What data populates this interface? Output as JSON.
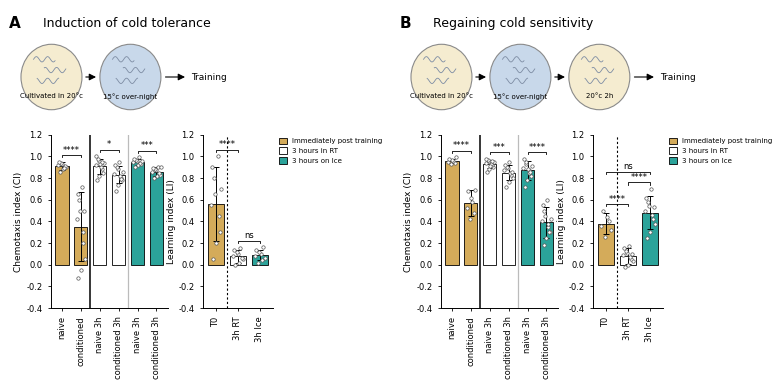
{
  "panels": [
    {
      "label": "A",
      "title": "Induction of cold tolerance",
      "steps": [
        {
          "label": "Cultivated in 20°c",
          "color": "#f5ecd0"
        },
        {
          "label": "15°c over-night",
          "color": "#c8d8ea"
        }
      ],
      "end": "Training"
    },
    {
      "label": "B",
      "title": "Regaining cold sensitivity",
      "steps": [
        {
          "label": "Cultivated in 20°c",
          "color": "#f5ecd0"
        },
        {
          "label": "15°c over-night",
          "color": "#c8d8ea"
        },
        {
          "label": "20°c 2h",
          "color": "#f5ecd0"
        }
      ],
      "end": "Training"
    }
  ],
  "chart_data": [
    {
      "type": "bar",
      "y_label": "Chemotaxis index (CI)",
      "categories": [
        "naive",
        "conditioned",
        "naive 3h",
        "conditioned 3h",
        "naive 3h",
        "conditioned 3h"
      ],
      "values": [
        0.91,
        0.35,
        0.91,
        0.83,
        0.95,
        0.86
      ],
      "errors": [
        0.04,
        0.32,
        0.07,
        0.08,
        0.03,
        0.04
      ],
      "colors": [
        "#d4ab5a",
        "#d4ab5a",
        "#ffffff",
        "#ffffff",
        "#2ba39a",
        "#2ba39a"
      ],
      "points": [
        [
          0.86,
          0.88,
          0.9,
          0.91,
          0.92,
          0.93,
          0.94,
          0.95,
          0.89
        ],
        [
          -0.12,
          -0.05,
          0.05,
          0.2,
          0.3,
          0.42,
          0.5,
          0.6,
          0.65,
          0.72,
          0.5
        ],
        [
          0.78,
          0.82,
          0.85,
          0.88,
          0.9,
          0.92,
          0.94,
          0.96,
          0.98,
          1.0,
          0.93,
          0.95
        ],
        [
          0.68,
          0.74,
          0.78,
          0.8,
          0.82,
          0.84,
          0.86,
          0.88,
          0.9,
          0.92,
          0.95,
          0.79
        ],
        [
          0.9,
          0.92,
          0.93,
          0.94,
          0.95,
          0.96,
          0.97,
          0.98,
          0.99,
          0.96
        ],
        [
          0.8,
          0.82,
          0.83,
          0.85,
          0.86,
          0.87,
          0.88,
          0.89,
          0.9,
          0.9
        ]
      ],
      "ylim": [
        -0.4,
        1.2
      ],
      "yticks": [
        -0.4,
        -0.2,
        {
          "value": 0,
          "label": "0.0"
        },
        0.2,
        0.4,
        0.6,
        0.8,
        {
          "value": 1,
          "label": "1.0"
        },
        1.2
      ],
      "significance": [
        {
          "between": [
            0,
            1
          ],
          "label": "****"
        },
        {
          "between": [
            2,
            3
          ],
          "label": "*"
        },
        {
          "between": [
            4,
            5
          ],
          "label": "***"
        }
      ]
    },
    {
      "type": "bar",
      "y_label": "Learning index (LI)",
      "categories": [
        "T0",
        "3h RT",
        "3h Ice"
      ],
      "series": [
        {
          "name": "Immediately post training",
          "color": "#d4ab5a",
          "values": [
            0.56,
            null,
            null
          ],
          "errors": [
            0.34,
            null,
            null
          ],
          "points": [
            [
              0.05,
              0.2,
              0.3,
              0.45,
              0.55,
              0.65,
              0.8,
              0.9,
              1.0,
              0.7
            ],
            null,
            null
          ]
        },
        {
          "name": "3 hours in RT",
          "color": "#ffffff",
          "values": [
            null,
            0.08,
            null
          ],
          "errors": [
            null,
            0.06,
            null
          ],
          "points": [
            null,
            [
              0.0,
              0.02,
              0.05,
              0.06,
              0.08,
              0.1,
              0.12,
              0.14,
              0.15
            ],
            null
          ]
        },
        {
          "name": "3 hours on Ice",
          "color": "#2ba39a",
          "values": [
            null,
            null,
            0.09
          ],
          "errors": [
            null,
            null,
            0.05
          ],
          "points": [
            null,
            null,
            [
              0.02,
              0.04,
              0.06,
              0.08,
              0.1,
              0.12,
              0.14,
              0.16
            ]
          ]
        }
      ],
      "legend": "upper left",
      "ylim": [
        -0.4,
        1.2
      ],
      "yticks": [
        -0.4,
        -0.2,
        {
          "value": 0,
          "label": "0.0"
        },
        0.2,
        0.4,
        0.6,
        0.8,
        {
          "value": 1,
          "label": "1.0"
        },
        1.2
      ],
      "significance": [
        {
          "between": [
            1,
            2
          ],
          "label": "ns"
        },
        {
          "between": [
            0,
            1
          ],
          "label": "****"
        }
      ]
    },
    {
      "type": "bar",
      "y_label": "Chemotaxis index (CI)",
      "categories": [
        "naive",
        "conditioned",
        "naive 3h",
        "conditioned 3h",
        "naive 3h",
        "conditioned 3h"
      ],
      "values": [
        0.96,
        0.57,
        0.93,
        0.85,
        0.87,
        0.39
      ],
      "errors": [
        0.02,
        0.12,
        0.04,
        0.07,
        0.09,
        0.14
      ],
      "colors": [
        "#d4ab5a",
        "#d4ab5a",
        "#ffffff",
        "#ffffff",
        "#2ba39a",
        "#2ba39a"
      ],
      "points": [
        [
          0.93,
          0.94,
          0.95,
          0.96,
          0.97,
          0.98,
          0.99
        ],
        [
          0.42,
          0.48,
          0.52,
          0.58,
          0.62,
          0.68,
          0.69
        ],
        [
          0.86,
          0.88,
          0.9,
          0.92,
          0.93,
          0.94,
          0.95,
          0.96,
          0.97,
          0.98,
          0.91,
          0.96
        ],
        [
          0.72,
          0.76,
          0.8,
          0.83,
          0.85,
          0.87,
          0.89,
          0.9,
          0.92,
          0.95,
          0.86
        ],
        [
          0.72,
          0.78,
          0.82,
          0.85,
          0.87,
          0.89,
          0.91,
          0.93,
          0.95,
          0.98,
          0.88,
          0.86
        ],
        [
          0.18,
          0.25,
          0.3,
          0.35,
          0.38,
          0.4,
          0.42,
          0.45,
          0.5,
          0.55,
          0.6,
          0.3
        ]
      ],
      "ylim": [
        -0.4,
        1.2
      ],
      "yticks": [
        -0.4,
        -0.2,
        {
          "value": 0,
          "label": "0.0"
        },
        0.2,
        0.4,
        0.6,
        0.8,
        {
          "value": 1,
          "label": "1.0"
        },
        1.2
      ],
      "significance": [
        {
          "between": [
            0,
            1
          ],
          "label": "****"
        },
        {
          "between": [
            2,
            3
          ],
          "label": "***"
        },
        {
          "between": [
            4,
            5
          ],
          "label": "****"
        }
      ]
    },
    {
      "type": "bar",
      "y_label": "Learning index (LI)",
      "categories": [
        "T0",
        "3h RT",
        "3h Ice"
      ],
      "series": [
        {
          "name": "Immediately post training",
          "color": "#d4ab5a",
          "values": [
            0.38,
            null,
            null
          ],
          "errors": [
            0.1,
            null,
            null
          ],
          "points": [
            [
              0.26,
              0.32,
              0.36,
              0.4,
              0.44,
              0.5
            ],
            null,
            null
          ]
        },
        {
          "name": "3 hours in RT",
          "color": "#ffffff",
          "values": [
            null,
            0.08,
            null
          ],
          "errors": [
            null,
            0.07,
            null
          ],
          "points": [
            null,
            [
              -0.02,
              0.0,
              0.03,
              0.05,
              0.07,
              0.09,
              0.11,
              0.13,
              0.15,
              0.17,
              0.1
            ],
            null
          ]
        },
        {
          "name": "3 hours on Ice",
          "color": "#2ba39a",
          "values": [
            null,
            null,
            0.48
          ],
          "errors": [
            null,
            null,
            0.15
          ],
          "points": [
            null,
            null,
            [
              0.25,
              0.3,
              0.38,
              0.42,
              0.46,
              0.5,
              0.54,
              0.58,
              0.62,
              0.7,
              0.53
            ]
          ]
        }
      ],
      "legend": "upper left",
      "ylim": [
        -0.4,
        1.2
      ],
      "yticks": [
        -0.4,
        -0.2,
        {
          "value": 0,
          "label": "0.0"
        },
        0.2,
        0.4,
        0.6,
        0.8,
        {
          "value": 1,
          "label": "1.0"
        },
        1.2
      ],
      "significance": [
        {
          "between": [
            0,
            1
          ],
          "label": "****"
        },
        {
          "between": [
            1,
            2
          ],
          "label": "****"
        },
        {
          "between": [
            0,
            2
          ],
          "label": "ns"
        }
      ]
    }
  ]
}
